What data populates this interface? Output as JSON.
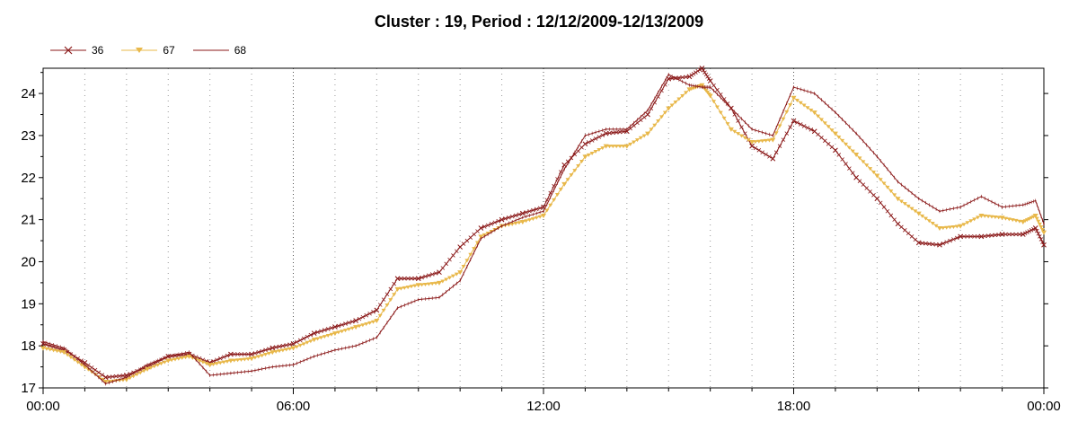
{
  "chart_data": {
    "type": "line",
    "title": "Cluster : 19, Period : 12/12/2009-12/13/2009",
    "xlabel": "",
    "ylabel": "",
    "x_ticks": [
      "00:00",
      "06:00",
      "12:00",
      "18:00",
      "00:00"
    ],
    "y_ticks": [
      17,
      18,
      19,
      20,
      21,
      22,
      23,
      24
    ],
    "ylim": [
      17,
      24.6
    ],
    "xlim_hours": [
      0,
      24
    ],
    "grid": "vertical dotted",
    "legend_placement": "top-left",
    "x_hours": [
      0,
      0.5,
      1,
      1.5,
      2,
      2.5,
      3,
      3.5,
      4,
      4.5,
      5,
      5.5,
      6,
      6.5,
      7,
      7.5,
      8,
      8.5,
      9,
      9.5,
      10,
      10.5,
      11,
      11.5,
      12,
      12.5,
      13,
      13.5,
      14,
      14.5,
      15,
      15.5,
      15.8,
      16,
      16.5,
      17,
      17.5,
      18,
      18.5,
      19,
      19.5,
      20,
      20.5,
      21,
      21.5,
      22,
      22.5,
      23,
      23.5,
      23.8,
      24
    ],
    "series": [
      {
        "name": "36",
        "color": "#8B1A1A",
        "marker": "x",
        "values": [
          18.05,
          17.9,
          17.6,
          17.25,
          17.3,
          17.5,
          17.75,
          17.8,
          17.6,
          17.8,
          17.8,
          17.95,
          18.05,
          18.3,
          18.45,
          18.6,
          18.85,
          19.6,
          19.6,
          19.75,
          20.35,
          20.8,
          21.0,
          21.15,
          21.3,
          22.3,
          22.8,
          23.05,
          23.1,
          23.5,
          24.35,
          24.4,
          24.6,
          24.3,
          23.65,
          22.75,
          22.45,
          23.35,
          23.1,
          22.65,
          22.0,
          21.5,
          20.9,
          20.45,
          20.4,
          20.6,
          20.6,
          20.65,
          20.65,
          20.8,
          20.4
        ]
      },
      {
        "name": "67",
        "color": "#E8B84A",
        "marker": "triangle-down",
        "values": [
          17.95,
          17.85,
          17.5,
          17.15,
          17.2,
          17.45,
          17.65,
          17.75,
          17.55,
          17.65,
          17.7,
          17.85,
          17.95,
          18.15,
          18.3,
          18.45,
          18.6,
          19.35,
          19.45,
          19.5,
          19.75,
          20.6,
          20.85,
          20.95,
          21.1,
          21.85,
          22.5,
          22.75,
          22.75,
          23.05,
          23.65,
          24.1,
          24.2,
          23.95,
          23.15,
          22.85,
          22.9,
          23.9,
          23.55,
          23.05,
          22.55,
          22.05,
          21.5,
          21.15,
          20.8,
          20.85,
          21.1,
          21.05,
          20.95,
          21.1,
          20.7
        ]
      },
      {
        "name": "68",
        "color": "#8B1A1A",
        "marker": "none",
        "values": [
          18.1,
          17.95,
          17.55,
          17.1,
          17.25,
          17.55,
          17.75,
          17.85,
          17.3,
          17.35,
          17.4,
          17.5,
          17.55,
          17.75,
          17.9,
          18.0,
          18.2,
          18.9,
          19.1,
          19.15,
          19.55,
          20.55,
          20.85,
          21.05,
          21.2,
          22.2,
          23.0,
          23.15,
          23.15,
          23.6,
          24.45,
          24.2,
          24.15,
          24.15,
          23.65,
          23.15,
          23.0,
          24.15,
          24.0,
          23.55,
          23.05,
          22.5,
          21.9,
          21.5,
          21.2,
          21.3,
          21.55,
          21.3,
          21.35,
          21.45,
          20.9
        ]
      }
    ]
  }
}
